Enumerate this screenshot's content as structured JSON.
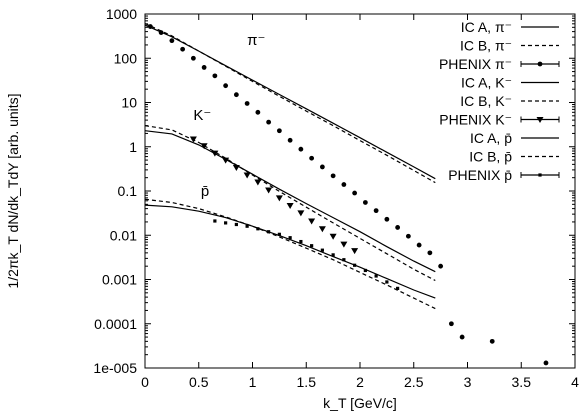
{
  "chart_data": {
    "type": "line",
    "xlabel": "k_T [GeV/c]",
    "ylabel": "1/2πk_T dN/dk_TdY [arb. units]",
    "xlim": [
      0,
      4
    ],
    "ylim": [
      1e-05,
      1000
    ],
    "yscale": "log",
    "grid": false,
    "legend_position": "top-right",
    "x_ticks": [
      "0",
      "0.5",
      "1",
      "1.5",
      "2",
      "2.5",
      "3",
      "3.5",
      "4"
    ],
    "y_ticks": [
      "1e-005",
      "0.0001",
      "0.001",
      "0.01",
      "0.1",
      "1",
      "10",
      "100",
      "1000"
    ],
    "annotations": [
      {
        "text": "π⁻",
        "x": 0.95,
        "y": 200
      },
      {
        "text": "K⁻",
        "x": 0.45,
        "y": 4.0
      },
      {
        "text": "p̄",
        "x": 0.52,
        "y": 0.078
      }
    ],
    "series": [
      {
        "name": "IC A, π⁻",
        "style": "solid",
        "x": [
          0,
          0.25,
          0.5,
          0.75,
          1.0,
          1.25,
          1.5,
          1.75,
          2.0,
          2.25,
          2.5,
          2.7
        ],
        "y": [
          560,
          305,
          145,
          68,
          32,
          15.2,
          7.2,
          3.4,
          1.6,
          0.75,
          0.35,
          0.19
        ]
      },
      {
        "name": "IC B, π⁻",
        "style": "dashed",
        "x": [
          0,
          0.25,
          0.5,
          0.75,
          1.0,
          1.25,
          1.5,
          1.75,
          2.0,
          2.25,
          2.5,
          2.7
        ],
        "y": [
          610,
          320,
          145,
          66,
          30,
          13.8,
          6.4,
          3.0,
          1.38,
          0.64,
          0.29,
          0.155
        ]
      },
      {
        "name": "PHENIX π⁻",
        "style": "points-circle",
        "x": [
          0.05,
          0.15,
          0.25,
          0.35,
          0.45,
          0.55,
          0.65,
          0.75,
          0.85,
          0.95,
          1.05,
          1.15,
          1.25,
          1.35,
          1.45,
          1.55,
          1.65,
          1.75,
          1.85,
          1.95,
          2.05,
          2.15,
          2.25,
          2.35,
          2.45,
          2.55,
          2.65,
          2.75,
          2.85,
          2.95,
          3.23,
          3.73
        ],
        "y": [
          520,
          380,
          250,
          160,
          100,
          62,
          40,
          24,
          15,
          9.5,
          6.0,
          3.6,
          2.3,
          1.4,
          0.88,
          0.55,
          0.35,
          0.22,
          0.14,
          0.09,
          0.055,
          0.036,
          0.023,
          0.015,
          0.0095,
          0.006,
          0.004,
          0.002,
          0.0001,
          5e-05,
          4e-05,
          1.3e-05
        ]
      },
      {
        "name": "IC A, K⁻",
        "style": "solid",
        "x": [
          0,
          0.25,
          0.5,
          0.75,
          1.0,
          1.25,
          1.5,
          1.75,
          2.0,
          2.25,
          2.5,
          2.7
        ],
        "y": [
          2.3,
          1.95,
          1.1,
          0.52,
          0.24,
          0.11,
          0.052,
          0.025,
          0.012,
          0.0055,
          0.0026,
          0.0015
        ]
      },
      {
        "name": "IC B, K⁻",
        "style": "dashed",
        "x": [
          0,
          0.25,
          0.5,
          0.75,
          1.0,
          1.25,
          1.5,
          1.75,
          2.0,
          2.25,
          2.5,
          2.7
        ],
        "y": [
          3.0,
          2.4,
          1.25,
          0.55,
          0.23,
          0.098,
          0.043,
          0.019,
          0.0085,
          0.0038,
          0.0017,
          0.00095
        ]
      },
      {
        "name": "PHENIX K⁻",
        "style": "points-triangle",
        "x": [
          0.45,
          0.55,
          0.65,
          0.75,
          0.85,
          0.95,
          1.05,
          1.15,
          1.25,
          1.35,
          1.45,
          1.55,
          1.65,
          1.75,
          1.85,
          1.95
        ],
        "y": [
          1.5,
          1.05,
          0.72,
          0.5,
          0.34,
          0.23,
          0.16,
          0.105,
          0.07,
          0.047,
          0.032,
          0.021,
          0.014,
          0.0095,
          0.0063,
          0.0045
        ]
      },
      {
        "name": "IC A, p̄",
        "style": "solid",
        "x": [
          0,
          0.25,
          0.5,
          0.75,
          1.0,
          1.25,
          1.5,
          1.75,
          2.0,
          2.25,
          2.5,
          2.7
        ],
        "y": [
          0.048,
          0.044,
          0.035,
          0.025,
          0.016,
          0.0098,
          0.0058,
          0.0033,
          0.0019,
          0.00105,
          0.00058,
          0.00038
        ]
      },
      {
        "name": "IC B, p̄",
        "style": "dashed",
        "x": [
          0,
          0.25,
          0.5,
          0.75,
          1.0,
          1.25,
          1.5,
          1.75,
          2.0,
          2.25,
          2.5,
          2.7
        ],
        "y": [
          0.065,
          0.055,
          0.04,
          0.026,
          0.016,
          0.0092,
          0.0051,
          0.0028,
          0.00145,
          0.00075,
          0.00038,
          0.00022
        ]
      },
      {
        "name": "PHENIX p̄",
        "style": "points-small",
        "x": [
          0.65,
          0.75,
          0.85,
          0.95,
          1.05,
          1.15,
          1.25,
          1.35,
          1.45,
          1.55,
          1.65,
          1.75,
          1.85,
          1.95,
          2.05,
          2.15,
          2.25,
          2.35
        ],
        "y": [
          0.021,
          0.019,
          0.0175,
          0.016,
          0.014,
          0.012,
          0.0105,
          0.0088,
          0.0072,
          0.0058,
          0.0046,
          0.0036,
          0.0028,
          0.0021,
          0.0016,
          0.0012,
          0.00088,
          0.00063
        ]
      }
    ]
  }
}
